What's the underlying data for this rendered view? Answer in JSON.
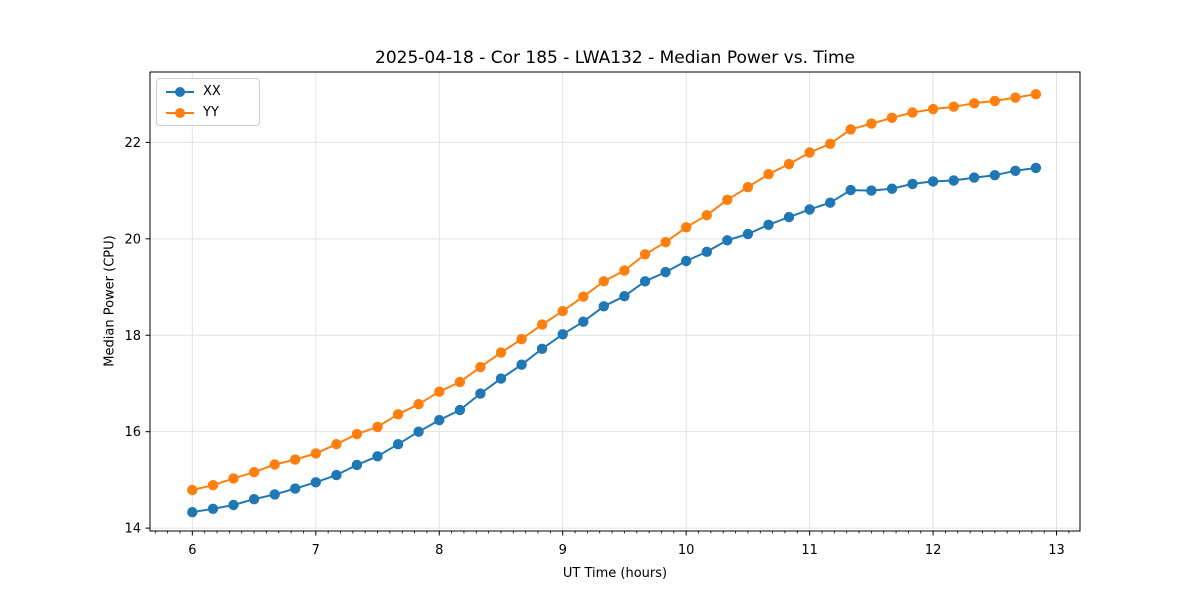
{
  "chart_data": {
    "type": "line",
    "title": "2025-04-18 - Cor 185 - LWA132 - Median Power vs. Time",
    "xlabel": "UT Time (hours)",
    "ylabel": "Median Power (CPU)",
    "x": [
      6.0,
      6.167,
      6.333,
      6.5,
      6.667,
      6.833,
      7.0,
      7.167,
      7.333,
      7.5,
      7.667,
      7.833,
      8.0,
      8.167,
      8.333,
      8.5,
      8.667,
      8.833,
      9.0,
      9.167,
      9.333,
      9.5,
      9.667,
      9.833,
      10.0,
      10.167,
      10.333,
      10.5,
      10.667,
      10.833,
      11.0,
      11.167,
      11.333,
      11.5,
      11.667,
      11.833,
      12.0,
      12.167,
      12.333,
      12.5,
      12.667,
      12.833
    ],
    "series": [
      {
        "name": "XX",
        "color": "#1f77b4",
        "values": [
          14.33,
          14.4,
          14.48,
          14.6,
          14.7,
          14.82,
          14.95,
          15.1,
          15.31,
          15.49,
          15.74,
          16.0,
          16.24,
          16.45,
          16.79,
          17.1,
          17.39,
          17.72,
          18.02,
          18.28,
          18.6,
          18.81,
          19.12,
          19.31,
          19.54,
          19.73,
          19.97,
          20.1,
          20.29,
          20.45,
          20.61,
          20.75,
          21.01,
          21.0,
          21.04,
          21.14,
          21.19,
          21.21,
          21.27,
          21.32,
          21.41,
          21.47
        ]
      },
      {
        "name": "YY",
        "color": "#ff7f0e",
        "values": [
          14.79,
          14.89,
          15.03,
          15.16,
          15.32,
          15.42,
          15.55,
          15.74,
          15.95,
          16.1,
          16.36,
          16.57,
          16.83,
          17.03,
          17.34,
          17.64,
          17.92,
          18.22,
          18.5,
          18.8,
          19.12,
          19.34,
          19.68,
          19.93,
          20.24,
          20.49,
          20.81,
          21.07,
          21.34,
          21.55,
          21.79,
          21.97,
          22.27,
          22.39,
          22.51,
          22.62,
          22.69,
          22.74,
          22.81,
          22.86,
          22.93,
          23.0
        ]
      }
    ],
    "xlim": [
      5.657,
      13.19
    ],
    "ylim": [
      13.94,
      23.46
    ],
    "xticks": [
      6,
      7,
      8,
      9,
      10,
      11,
      12,
      13
    ],
    "yticks": [
      14,
      16,
      18,
      20,
      22
    ],
    "x_minor_step": 0.1,
    "grid": true,
    "grid_color": "#e2e2e2",
    "axis_color": "#000000",
    "legend_position": "upper left"
  }
}
